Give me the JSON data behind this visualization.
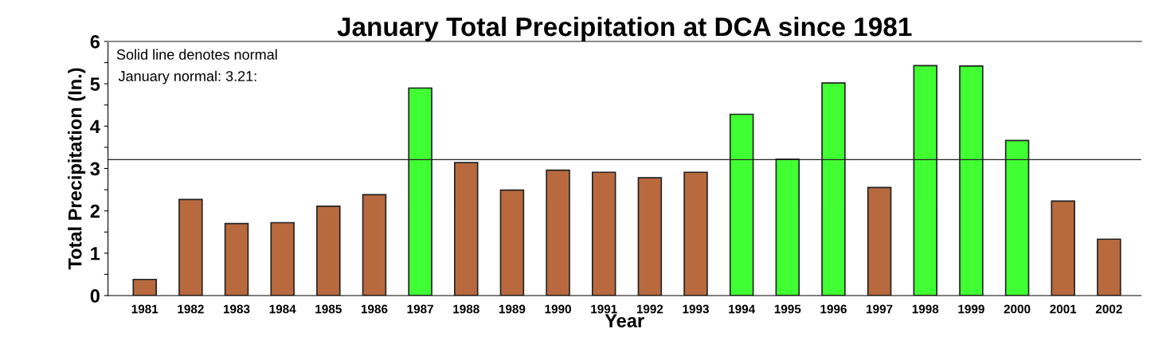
{
  "chart_data": {
    "type": "bar",
    "title": "January Total Precipitation at DCA since 1981",
    "xlabel": "Year",
    "ylabel": "Total Precipitation (In.)",
    "categories": [
      "1981",
      "1982",
      "1983",
      "1984",
      "1985",
      "1986",
      "1987",
      "1988",
      "1989",
      "1990",
      "1991",
      "1992",
      "1993",
      "1994",
      "1995",
      "1996",
      "1997",
      "1998",
      "1999",
      "2000",
      "2001",
      "2002"
    ],
    "values": [
      0.38,
      2.27,
      1.7,
      1.72,
      2.11,
      2.38,
      4.9,
      3.14,
      2.49,
      2.96,
      2.91,
      2.78,
      2.91,
      4.28,
      3.22,
      5.02,
      2.55,
      5.43,
      5.42,
      3.66,
      2.23,
      1.33
    ],
    "colors": [
      "#b86a3e",
      "#b86a3e",
      "#b86a3e",
      "#b86a3e",
      "#b86a3e",
      "#b86a3e",
      "#40ff33",
      "#b86a3e",
      "#b86a3e",
      "#b86a3e",
      "#b86a3e",
      "#b86a3e",
      "#b86a3e",
      "#40ff33",
      "#40ff33",
      "#40ff33",
      "#b86a3e",
      "#40ff33",
      "#40ff33",
      "#40ff33",
      "#b86a3e",
      "#b86a3e"
    ],
    "ylim": [
      0,
      6
    ],
    "yticks": [
      0,
      {
        "value": 0.5,
        "label": null
      },
      1,
      {
        "value": 1.5,
        "label": null
      },
      2,
      {
        "value": 2.5,
        "label": null
      },
      3,
      {
        "value": 3.5,
        "label": null
      },
      4,
      {
        "value": 4.5,
        "label": null
      },
      5,
      {
        "value": 5.5,
        "label": null
      },
      6
    ],
    "ref_lines": [
      {
        "axis": "y",
        "value": 3.21,
        "color": "#222222",
        "line_style": "solid"
      }
    ],
    "annotations": [
      "Solid line denotes normal",
      "January normal: 3.21:"
    ],
    "grid": false,
    "legend": false
  }
}
